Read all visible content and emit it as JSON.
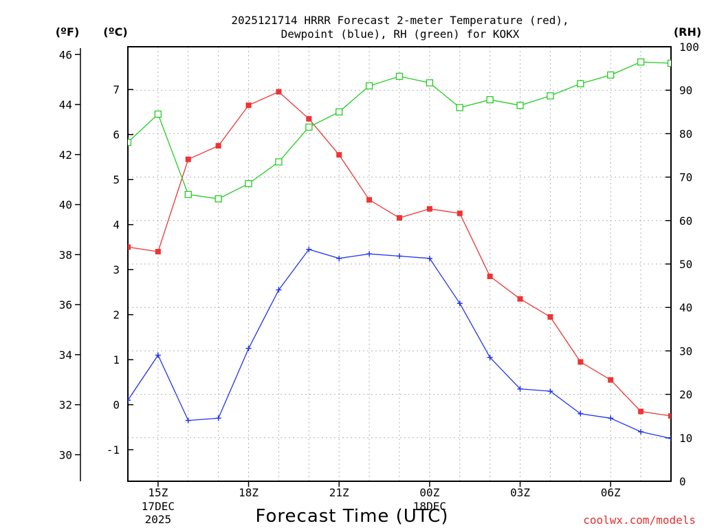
{
  "chart_data": {
    "type": "line",
    "title_line1": "2025121714 HRRR Forecast 2-meter Temperature (red),",
    "title_line2": "Dewpoint (blue), RH (green) for KOKX",
    "xlabel": "Forecast Time (UTC)",
    "credit": "coolwx.com/models",
    "units": {
      "left_outer": "(ºF)",
      "left_inner": "(ºC)",
      "right": "(RH)"
    },
    "hours": [
      14,
      15,
      16,
      17,
      18,
      19,
      20,
      21,
      22,
      23,
      24,
      25,
      26,
      27,
      28,
      29,
      30,
      31,
      32
    ],
    "x_ticks": [
      {
        "hour": 15,
        "label": "15Z",
        "sub1": "17DEC",
        "sub2": "2025"
      },
      {
        "hour": 18,
        "label": "18Z",
        "sub1": "",
        "sub2": ""
      },
      {
        "hour": 21,
        "label": "21Z",
        "sub1": "",
        "sub2": ""
      },
      {
        "hour": 24,
        "label": "00Z",
        "sub1": "18DEC",
        "sub2": ""
      },
      {
        "hour": 27,
        "label": "03Z",
        "sub1": "",
        "sub2": ""
      },
      {
        "hour": 30,
        "label": "06Z",
        "sub1": "",
        "sub2": ""
      }
    ],
    "y_celsius": {
      "range": [
        -1.7,
        7.95
      ],
      "ticks": [
        "-1",
        "0",
        "1",
        "2",
        "3",
        "4",
        "5",
        "6",
        "7"
      ]
    },
    "y_fahrenheit": {
      "ticks": [
        "30",
        "32",
        "34",
        "36",
        "38",
        "40",
        "42",
        "44",
        "46"
      ]
    },
    "y_rh": {
      "range": [
        0,
        100
      ],
      "ticks": [
        "0",
        "10",
        "20",
        "30",
        "40",
        "50",
        "60",
        "70",
        "80",
        "90",
        "100"
      ]
    },
    "series": [
      {
        "name": "Temperature",
        "color": "#ee3333",
        "axis": "celsius",
        "marker": "filled-square",
        "values": [
          3.5,
          3.4,
          5.45,
          5.75,
          6.65,
          6.95,
          6.35,
          5.55,
          4.55,
          4.15,
          4.35,
          4.25,
          2.85,
          2.35,
          1.95,
          0.95,
          0.55,
          -0.15,
          -0.25
        ]
      },
      {
        "name": "Dewpoint",
        "color": "#2233ee",
        "axis": "celsius",
        "marker": "plus",
        "values": [
          0.1,
          1.1,
          -0.35,
          -0.3,
          1.25,
          2.55,
          3.45,
          3.25,
          3.35,
          3.3,
          3.25,
          2.25,
          1.05,
          0.35,
          0.3,
          -0.2,
          -0.3,
          -0.6,
          -0.75
        ]
      },
      {
        "name": "RH",
        "color": "#22cc22",
        "axis": "rh",
        "marker": "open-square",
        "values": [
          78,
          84.5,
          66,
          65,
          68.5,
          73.5,
          81.5,
          85,
          91,
          93.2,
          91.7,
          86,
          87.8,
          86.5,
          88.7,
          91.5,
          93.5,
          96.5,
          96.2
        ]
      }
    ]
  }
}
